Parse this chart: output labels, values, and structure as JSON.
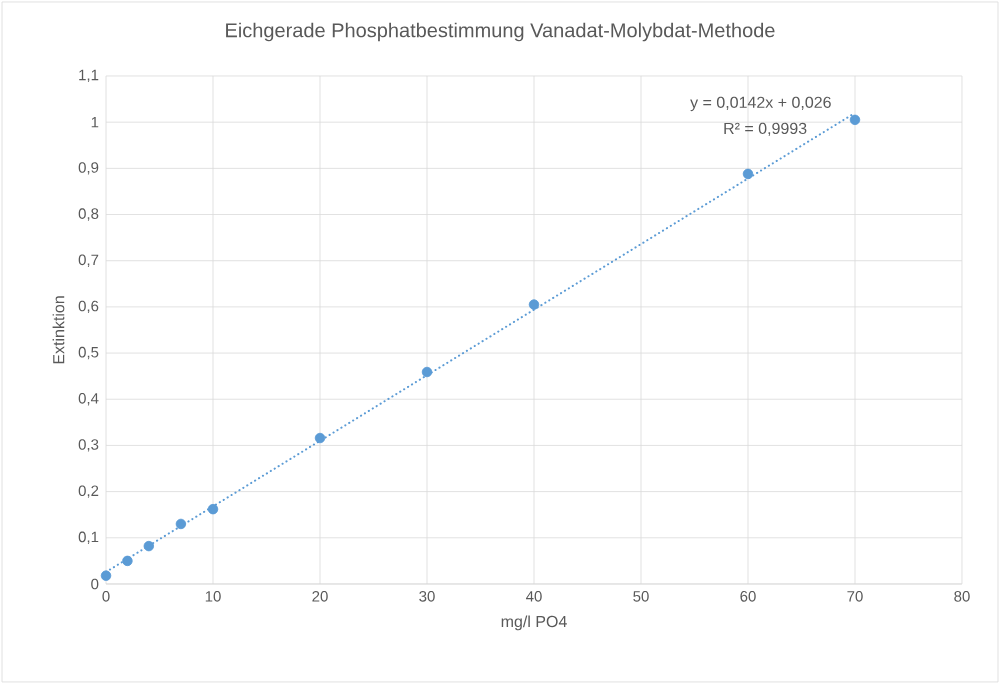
{
  "chart_data": {
    "type": "scatter",
    "title": "Eichgerade Phosphatbestimmung Vanadat-Molybdat-Methode",
    "xlabel": "mg/l PO4",
    "ylabel": "Extinktion",
    "annotations": [
      "y = 0,0142x + 0,026",
      "R² = 0,9993"
    ],
    "series": [
      {
        "color": "#5b9bd5",
        "marker": "circle",
        "x": [
          0,
          2,
          4,
          7,
          10,
          20,
          30,
          40,
          60,
          70
        ],
        "values": [
          0.018,
          0.05,
          0.082,
          0.13,
          0.162,
          0.316,
          0.459,
          0.605,
          0.888,
          1.005
        ]
      },
      {
        "type": "line",
        "color": "#5b9bd5",
        "line_style": "dotted",
        "marker": "none",
        "x": [
          0,
          70
        ],
        "values": [
          0.026,
          1.02
        ]
      }
    ],
    "xlim": [
      0,
      80
    ],
    "xticks": [
      0,
      10,
      20,
      30,
      40,
      50,
      60,
      70,
      80
    ],
    "ylim": [
      0,
      1.1
    ],
    "yticks": [
      0,
      {
        "value": 0.1,
        "label": "0,1"
      },
      {
        "value": 0.2,
        "label": "0,2"
      },
      {
        "value": 0.3,
        "label": "0,3"
      },
      {
        "value": 0.4,
        "label": "0,4"
      },
      {
        "value": 0.5,
        "label": "0,5"
      },
      {
        "value": 0.6,
        "label": "0,6"
      },
      {
        "value": 0.7,
        "label": "0,7"
      },
      {
        "value": 0.8,
        "label": "0,8"
      },
      {
        "value": 0.9,
        "label": "0,9"
      },
      1,
      {
        "value": 1.1,
        "label": "1,1"
      }
    ],
    "grid": true
  }
}
